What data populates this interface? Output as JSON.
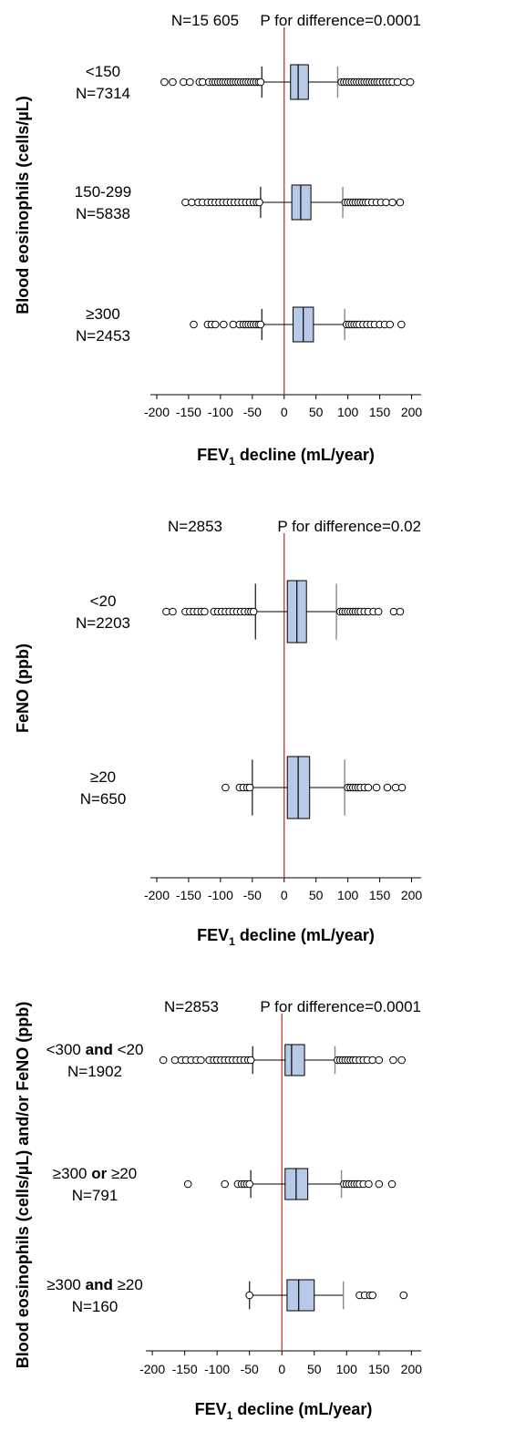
{
  "chart_data": [
    {
      "type": "boxplot",
      "ylabel": "Blood eosinophils (cells/µL)",
      "xlabel": "FEV",
      "xlabel_sub": "1",
      "xlabel_rest": " decline (mL/year)",
      "n_total": "N=15 605",
      "p_text": "P for difference=0.0001",
      "xlim": [
        -210,
        215
      ],
      "xticks": [
        -200,
        -150,
        -100,
        -50,
        0,
        50,
        100,
        150,
        200
      ],
      "colors": {
        "box_fill": "#b8c9e8",
        "ref_line": "#c0392b"
      },
      "groups": [
        {
          "label": "<150",
          "n": "N=7314",
          "whisker_low": -35,
          "q1": 10,
          "median": 22,
          "q3": 38,
          "whisker_high": 84,
          "outliers": [
            -188,
            -175,
            -158,
            -148,
            -133,
            -128,
            -118,
            -112,
            -108,
            -104,
            -100,
            -96,
            -92,
            -88,
            -84,
            -80,
            -76,
            -72,
            -68,
            -64,
            -60,
            -56,
            -52,
            -48,
            -44,
            -40,
            -37,
            90,
            94,
            98,
            102,
            106,
            110,
            114,
            118,
            122,
            126,
            130,
            134,
            138,
            142,
            146,
            150,
            155,
            160,
            165,
            170,
            178,
            188,
            198
          ]
        },
        {
          "label": "150-299",
          "n": "N=5838",
          "whisker_low": -37,
          "q1": 12,
          "median": 26,
          "q3": 42,
          "whisker_high": 92,
          "outliers": [
            -155,
            -145,
            -135,
            -128,
            -120,
            -114,
            -108,
            -102,
            -96,
            -90,
            -84,
            -78,
            -72,
            -66,
            -60,
            -54,
            -48,
            -43,
            -39,
            96,
            100,
            104,
            108,
            112,
            116,
            120,
            124,
            128,
            132,
            138,
            145,
            152,
            160,
            170,
            182
          ]
        },
        {
          "label": "≥300",
          "n": "N=2453",
          "whisker_low": -35,
          "q1": 14,
          "median": 30,
          "q3": 46,
          "whisker_high": 95,
          "outliers": [
            -142,
            -120,
            -114,
            -108,
            -95,
            -80,
            -70,
            -64,
            -60,
            -56,
            -52,
            -48,
            -44,
            -40,
            -37,
            98,
            102,
            106,
            110,
            114,
            118,
            124,
            130,
            136,
            142,
            150,
            158,
            166,
            184
          ]
        }
      ]
    },
    {
      "type": "boxplot",
      "ylabel": "FeNO (ppb)",
      "xlabel": "FEV",
      "xlabel_sub": "1",
      "xlabel_rest": " decline (mL/year)",
      "n_total": "N=2853",
      "p_text": "P for difference=0.02",
      "xlim": [
        -210,
        215
      ],
      "xticks": [
        -200,
        -150,
        -100,
        -50,
        0,
        50,
        100,
        150,
        200
      ],
      "colors": {
        "box_fill": "#b8c9e8",
        "ref_line": "#c0392b"
      },
      "groups": [
        {
          "label": "<20",
          "n": "N=2203",
          "whisker_low": -45,
          "q1": 5,
          "median": 20,
          "q3": 35,
          "whisker_high": 82,
          "outliers": [
            -185,
            -175,
            -155,
            -148,
            -142,
            -136,
            -130,
            -125,
            -110,
            -104,
            -98,
            -92,
            -86,
            -80,
            -74,
            -68,
            -62,
            -56,
            -52,
            -48,
            88,
            92,
            96,
            100,
            104,
            108,
            112,
            116,
            120,
            126,
            132,
            140,
            148,
            172,
            182
          ]
        },
        {
          "label": "≥20",
          "n": "N=650",
          "whisker_low": -50,
          "q1": 5,
          "median": 22,
          "q3": 40,
          "whisker_high": 95,
          "outliers": [
            -92,
            -70,
            -64,
            -58,
            -54,
            100,
            104,
            108,
            112,
            116,
            120,
            126,
            132,
            145,
            162,
            175,
            185
          ]
        }
      ]
    },
    {
      "type": "boxplot",
      "ylabel": "Blood eosinophils (cells/µL) and/or FeNO (ppb)",
      "xlabel": "FEV",
      "xlabel_sub": "1",
      "xlabel_rest": " decline (mL/year)",
      "n_total": "N=2853",
      "p_text": "P for difference=0.0001",
      "xlim": [
        -210,
        215
      ],
      "xticks": [
        -200,
        -150,
        -100,
        -50,
        0,
        50,
        100,
        150,
        200
      ],
      "colors": {
        "box_fill": "#b8c9e8",
        "ref_line": "#c0392b"
      },
      "groups": [
        {
          "label_parts": [
            "<300 ",
            "and",
            " <20"
          ],
          "n": "N=1902",
          "whisker_low": -45,
          "q1": 5,
          "median": 15,
          "q3": 35,
          "whisker_high": 82,
          "outliers": [
            -183,
            -165,
            -155,
            -148,
            -140,
            -132,
            -125,
            -112,
            -105,
            -100,
            -94,
            -88,
            -82,
            -76,
            -70,
            -64,
            -58,
            -52,
            -48,
            86,
            90,
            94,
            98,
            102,
            106,
            110,
            114,
            120,
            126,
            132,
            140,
            150,
            172,
            185
          ]
        },
        {
          "label_parts": [
            "≥300 ",
            "or",
            " ≥20"
          ],
          "n": "N=791",
          "whisker_low": -48,
          "q1": 5,
          "median": 22,
          "q3": 40,
          "whisker_high": 92,
          "outliers": [
            -145,
            -88,
            -68,
            -62,
            -58,
            -54,
            -50,
            96,
            100,
            104,
            108,
            112,
            116,
            120,
            126,
            134,
            150,
            170
          ]
        },
        {
          "label_parts": [
            "≥300 ",
            "and",
            " ≥20"
          ],
          "n": "N=160",
          "whisker_low": -50,
          "q1": 8,
          "median": 26,
          "q3": 50,
          "whisker_high": 95,
          "outliers": [
            -50,
            120,
            128,
            136,
            140,
            188
          ]
        }
      ]
    }
  ]
}
